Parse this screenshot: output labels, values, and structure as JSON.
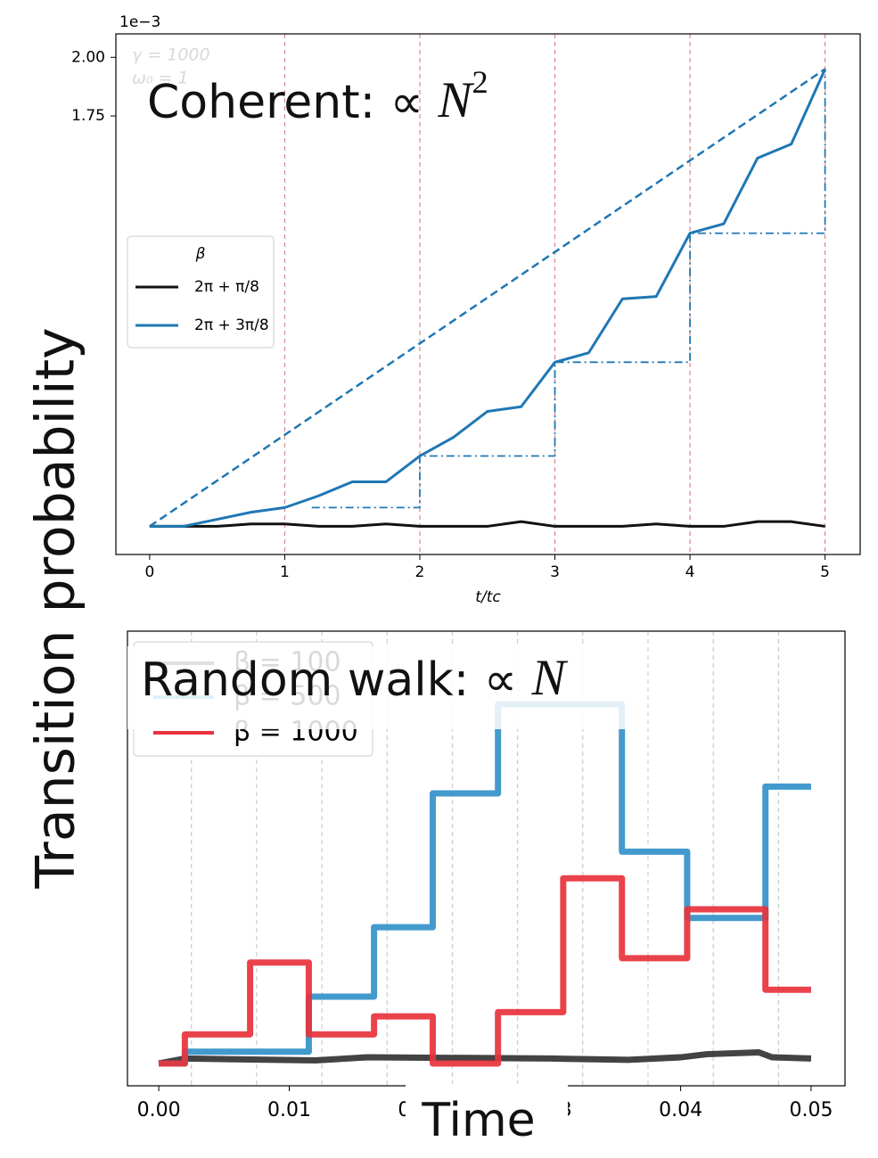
{
  "ylabel": "Transition probability",
  "xlabel": "Time",
  "chart_data": [
    {
      "type": "line",
      "offset_text": "1e−3",
      "xlabel": "t/tc",
      "xlim": [
        -0.25,
        5.26
      ],
      "ylim": [
        -0.12,
        2.1
      ],
      "xticks": [
        0,
        1,
        2,
        3,
        4,
        5
      ],
      "yticks": [
        {
          "value": 2,
          "label": "2.00"
        },
        {
          "value": 1.75,
          "label": "1.75"
        }
      ],
      "vlines": [
        1,
        2,
        3,
        4,
        5
      ],
      "vline_color": "#d98a8a",
      "params": [
        "γ = 1000",
        "ω₀ = 1"
      ],
      "annotation": {
        "text": "Coherent:  ∝ ",
        "math": "N",
        "sup": "2"
      },
      "legend_title": "β",
      "x": [
        0,
        0.25,
        0.5,
        0.75,
        1,
        1.25,
        1.5,
        1.75,
        2,
        2.25,
        2.5,
        2.75,
        3,
        3.25,
        3.5,
        3.75,
        4,
        4.25,
        4.5,
        4.75,
        5
      ],
      "series": [
        {
          "name": "2π + π/8",
          "color": "#111111",
          "values": [
            0,
            0,
            0,
            0.01,
            0.01,
            0,
            0,
            0.01,
            0,
            0,
            0,
            0.02,
            0,
            0,
            0,
            0.01,
            0,
            0,
            0.02,
            0.02,
            0
          ]
        },
        {
          "name": "2π + 3π/8",
          "color": "#1f77b4",
          "values": [
            0,
            0,
            0.03,
            0.06,
            0.08,
            0.13,
            0.19,
            0.19,
            0.3,
            0.38,
            0.49,
            0.51,
            0.7,
            0.74,
            0.97,
            0.98,
            1.25,
            1.29,
            1.57,
            1.63,
            1.95
          ]
        }
      ],
      "trend": {
        "color": "#1f77b4",
        "x": [
          0,
          5
        ],
        "values": [
          0,
          1.95
        ]
      },
      "steps": {
        "color": "#1f77b4",
        "x": [
          1.2,
          2,
          2,
          3,
          3,
          4,
          4,
          5,
          5
        ],
        "values": [
          0.08,
          0.08,
          0.3,
          0.3,
          0.7,
          0.7,
          1.25,
          1.25,
          1.95
        ]
      }
    },
    {
      "type": "line",
      "xlim": [
        -0.0024,
        0.0526
      ],
      "ylim": [
        -0.36,
        6.98
      ],
      "xticks": [
        {
          "value": 0,
          "label": "0.00"
        },
        {
          "value": 0.01,
          "label": "0.01"
        },
        {
          "value": 0.02,
          "label": "0.02"
        },
        {
          "value": 0.03,
          "label": "0.03"
        },
        {
          "value": 0.04,
          "label": "0.04"
        },
        {
          "value": 0.05,
          "label": "0.05"
        }
      ],
      "vlines": [
        0.0025,
        0.0075,
        0.0125,
        0.0175,
        0.0225,
        0.0275,
        0.0325,
        0.0375,
        0.0425,
        0.0475
      ],
      "vline_color": "#cccccc",
      "annotation": {
        "text": "Random walk:  ∝ ",
        "math": "N"
      },
      "series": [
        {
          "name": "β = 100",
          "color": "#333333",
          "x": [
            0,
            0.002,
            0.012,
            0.016,
            0.03,
            0.036,
            0.04,
            0.042,
            0.046,
            0.047,
            0.05
          ],
          "values": [
            0,
            0.08,
            0.05,
            0.1,
            0.08,
            0.06,
            0.1,
            0.15,
            0.18,
            0.1,
            0.08
          ]
        },
        {
          "name": "β = 500",
          "color": "#3391c9",
          "x": [
            0,
            0.002,
            0.002,
            0.0115,
            0.0115,
            0.0165,
            0.0165,
            0.021,
            0.021,
            0.026,
            0.026,
            0.0355,
            0.0355,
            0.0405,
            0.0405,
            0.0465,
            0.0465,
            0.05
          ],
          "values": [
            0,
            0,
            0.19,
            0.19,
            1.08,
            1.08,
            2.2,
            2.2,
            4.36,
            4.36,
            5.8,
            5.8,
            3.42,
            3.42,
            2.35,
            2.35,
            4.47,
            4.47
          ]
        },
        {
          "name": "β = 1000",
          "color": "#e8323c",
          "x": [
            0,
            0.002,
            0.002,
            0.007,
            0.007,
            0.0115,
            0.0115,
            0.0165,
            0.0165,
            0.021,
            0.021,
            0.026,
            0.026,
            0.031,
            0.031,
            0.0355,
            0.0355,
            0.0405,
            0.0405,
            0.0465,
            0.0465,
            0.05
          ],
          "values": [
            0,
            0,
            0.47,
            0.47,
            1.63,
            1.63,
            0.47,
            0.47,
            0.76,
            0.76,
            0,
            0,
            0.83,
            0.83,
            2.99,
            2.99,
            1.7,
            1.7,
            2.49,
            2.49,
            1.19,
            1.19
          ]
        }
      ]
    }
  ]
}
